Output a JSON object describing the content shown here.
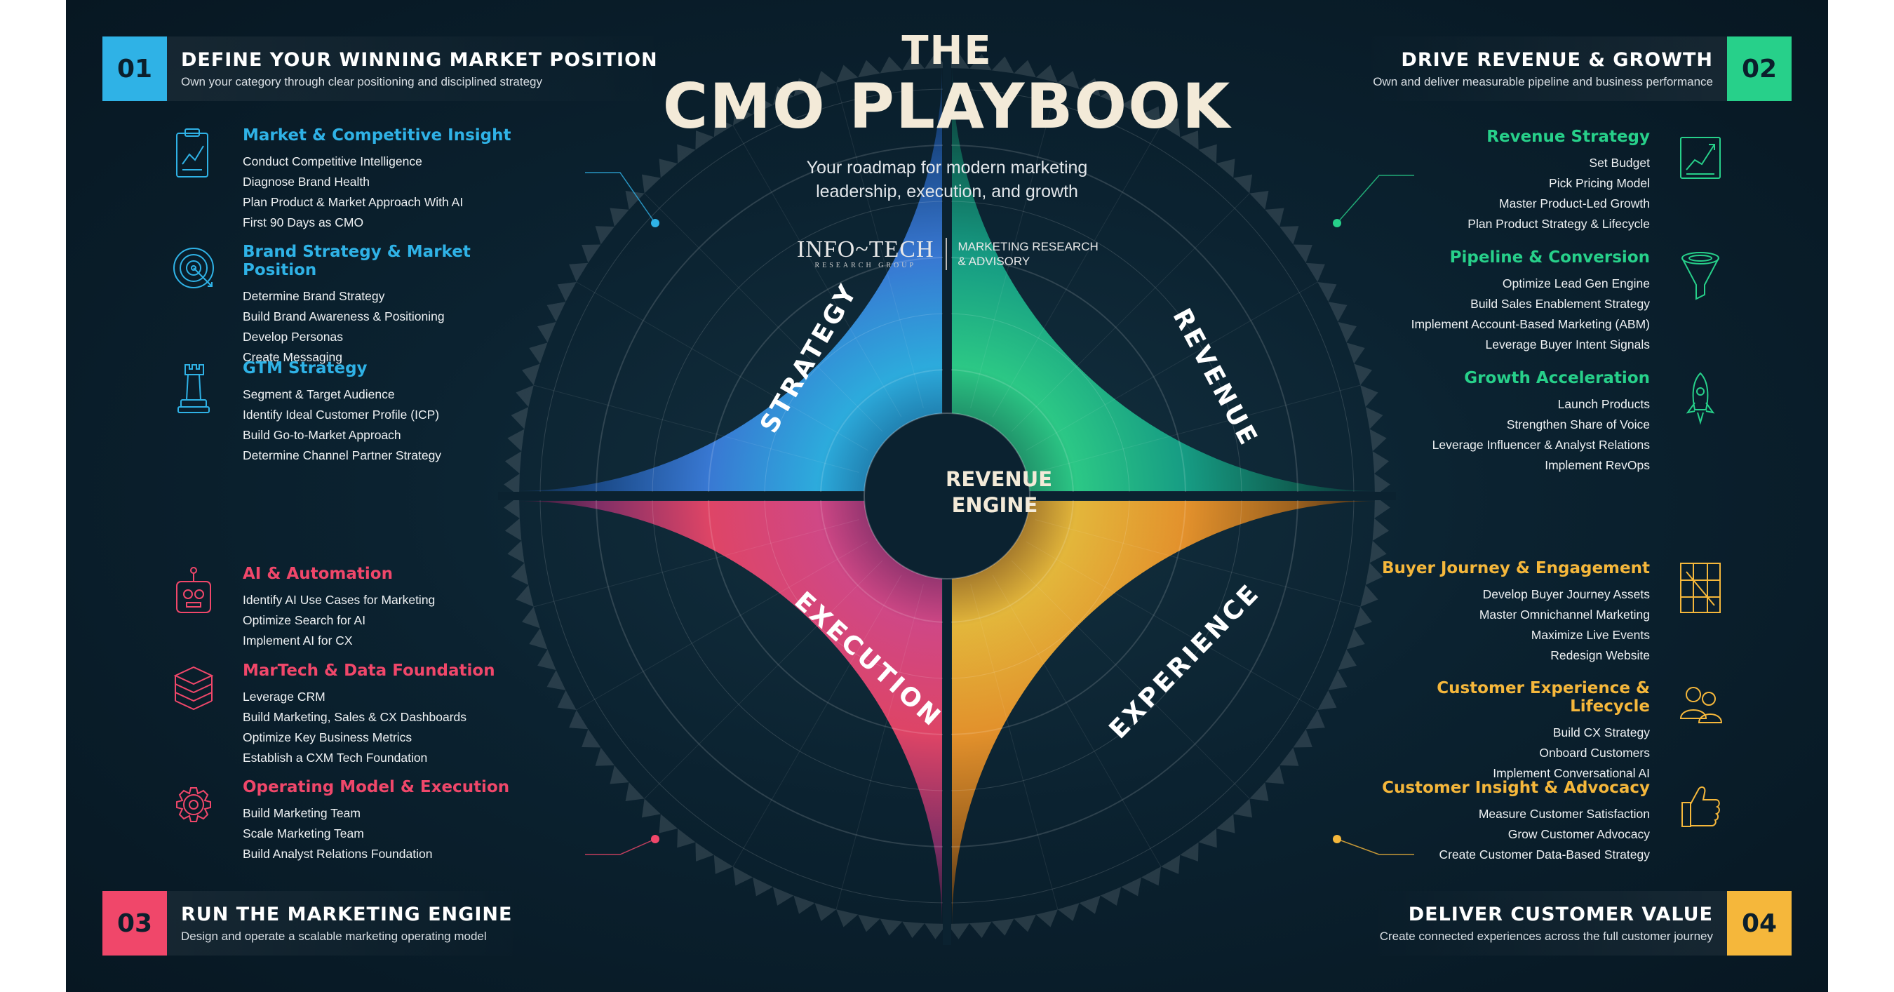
{
  "header": {
    "line1": "THE",
    "line2": "CMO PLAYBOOK",
    "subtitle_1": "Your roadmap for modern marketing",
    "subtitle_2": "leadership, execution, and growth"
  },
  "brand": {
    "logo": "INFO~TECH",
    "logo_sub": "RESEARCH GROUP",
    "tagline_1": "MARKETING RESEARCH",
    "tagline_2": "& ADVISORY"
  },
  "hub": {
    "line1": "REVENUE",
    "line2": "ENGINE"
  },
  "segments": {
    "strategy": "STRATEGY",
    "revenue": "REVENUE",
    "execution": "EXECUTION",
    "experience": "EXPERIENCE"
  },
  "colors": {
    "q1": "#2fb2e6",
    "q2": "#27d08a",
    "q3": "#f0476a",
    "q4": "#f5b73b",
    "background": "#0b2230"
  },
  "quadrants": [
    {
      "number": "01",
      "title": "DEFINE YOUR WINNING MARKET POSITION",
      "subtitle": "Own your category through clear positioning and disciplined strategy",
      "groups": [
        {
          "title": "Market & Competitive Insight",
          "icon": "clipboard-chart-icon",
          "items": [
            "Conduct Competitive Intelligence",
            "Diagnose Brand Health",
            "Plan Product & Market Approach With AI",
            "First 90 Days as CMO"
          ]
        },
        {
          "title": "Brand Strategy & Market Position",
          "icon": "target-icon",
          "items": [
            "Determine Brand Strategy",
            "Build Brand Awareness & Positioning",
            "Develop Personas",
            "Create Messaging"
          ]
        },
        {
          "title": "GTM Strategy",
          "icon": "chess-rook-icon",
          "items": [
            "Segment & Target Audience",
            "Identify Ideal Customer Profile (ICP)",
            "Build Go-to-Market Approach",
            "Determine Channel Partner Strategy"
          ]
        }
      ]
    },
    {
      "number": "02",
      "title": "DRIVE REVENUE & GROWTH",
      "subtitle": "Own and deliver measurable pipeline and business performance",
      "groups": [
        {
          "title": "Revenue Strategy",
          "icon": "growth-chart-icon",
          "items": [
            "Set Budget",
            "Pick Pricing Model",
            "Master Product-Led Growth",
            "Plan Product Strategy & Lifecycle"
          ]
        },
        {
          "title": "Pipeline & Conversion",
          "icon": "funnel-icon",
          "items": [
            "Optimize Lead Gen Engine",
            "Build Sales Enablement Strategy",
            "Implement Account-Based Marketing (ABM)",
            "Leverage Buyer Intent Signals"
          ]
        },
        {
          "title": "Growth Acceleration",
          "icon": "rocket-icon",
          "items": [
            "Launch Products",
            "Strengthen Share of Voice",
            "Leverage Influencer & Analyst Relations",
            "Implement RevOps"
          ]
        }
      ]
    },
    {
      "number": "03",
      "title": "RUN THE MARKETING ENGINE",
      "subtitle": "Design and operate a scalable marketing operating model",
      "groups": [
        {
          "title": "AI & Automation",
          "icon": "robot-icon",
          "items": [
            "Identify AI Use Cases for Marketing",
            "Optimize Search for AI",
            "Implement AI for CX"
          ]
        },
        {
          "title": "MarTech & Data Foundation",
          "icon": "data-stack-icon",
          "items": [
            "Leverage CRM",
            "Build Marketing, Sales & CX Dashboards",
            "Optimize Key Business Metrics",
            "Establish a CXM Tech Foundation"
          ]
        },
        {
          "title": "Operating Model & Execution",
          "icon": "gear-icon",
          "items": [
            "Build Marketing Team",
            "Scale Marketing Team",
            "Build Analyst Relations Foundation"
          ]
        }
      ]
    },
    {
      "number": "04",
      "title": "DELIVER CUSTOMER VALUE",
      "subtitle": "Create connected experiences across the full customer journey",
      "groups": [
        {
          "title": "Buyer Journey & Engagement",
          "icon": "journey-map-icon",
          "items": [
            "Develop Buyer Journey Assets",
            "Master Omnichannel Marketing",
            "Maximize Live Events",
            "Redesign Website"
          ]
        },
        {
          "title": "Customer Experience & Lifecycle",
          "icon": "people-icon",
          "items": [
            "Build CX Strategy",
            "Onboard Customers",
            "Implement Conversational AI"
          ]
        },
        {
          "title": "Customer Insight & Advocacy",
          "icon": "thumbs-up-icon",
          "items": [
            "Measure Customer Satisfaction",
            "Grow Customer Advocacy",
            "Create Customer Data-Based Strategy"
          ]
        }
      ]
    }
  ]
}
